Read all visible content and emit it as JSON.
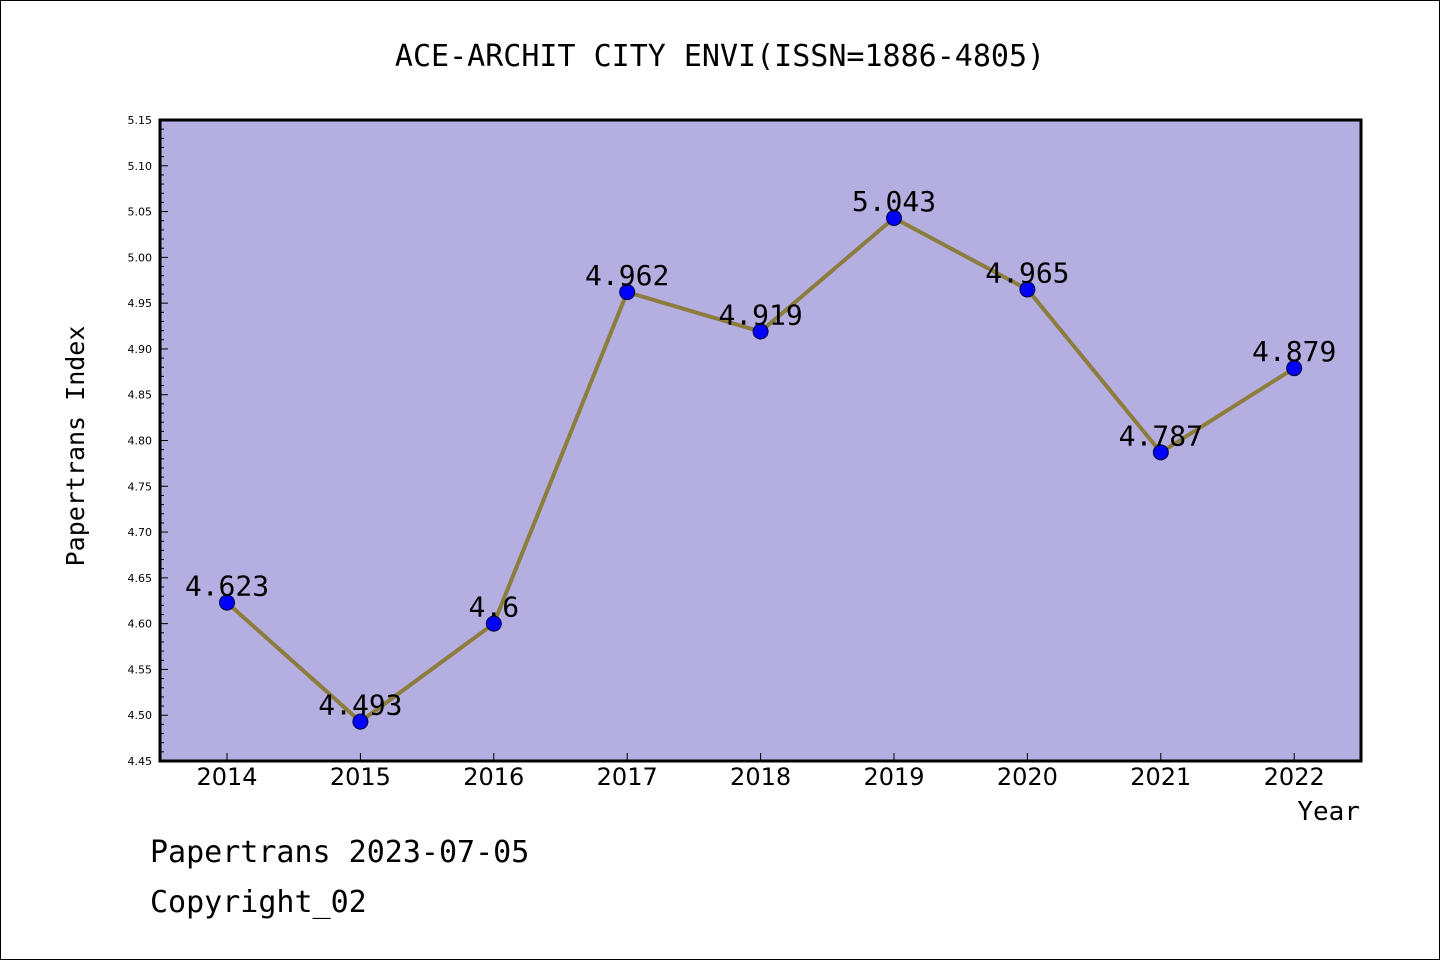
{
  "chart_data": {
    "type": "line",
    "title": "ACE-ARCHIT CITY ENVI(ISSN=1886-4805)",
    "xlabel": "Year",
    "ylabel": "Papertrans Index",
    "categories": [
      "2014",
      "2015",
      "2016",
      "2017",
      "2018",
      "2019",
      "2020",
      "2021",
      "2022"
    ],
    "series": [
      {
        "values": [
          4.623,
          4.493,
          4.6,
          4.962,
          4.919,
          5.043,
          4.965,
          4.787,
          4.879
        ],
        "labels": [
          "4.623",
          "4.493",
          "4.6",
          "4.962",
          "4.919",
          "5.043",
          "4.965",
          "4.787",
          "4.879"
        ]
      }
    ],
    "ylim": [
      4.45,
      5.15
    ],
    "yticks": [
      "4.45",
      "4.50",
      "4.55",
      "4.60",
      "4.65",
      "4.70",
      "4.75",
      "4.80",
      "4.85",
      "4.90",
      "4.95",
      "5.00",
      "5.05",
      "5.10",
      "5.15"
    ],
    "grid": false,
    "colors": {
      "plot_background": "#b5aee1",
      "line": "#8c7d3c",
      "marker": "#0000ff"
    }
  },
  "footer": {
    "line1": "Papertrans 2023-07-05",
    "line2": "Copyright_02"
  }
}
